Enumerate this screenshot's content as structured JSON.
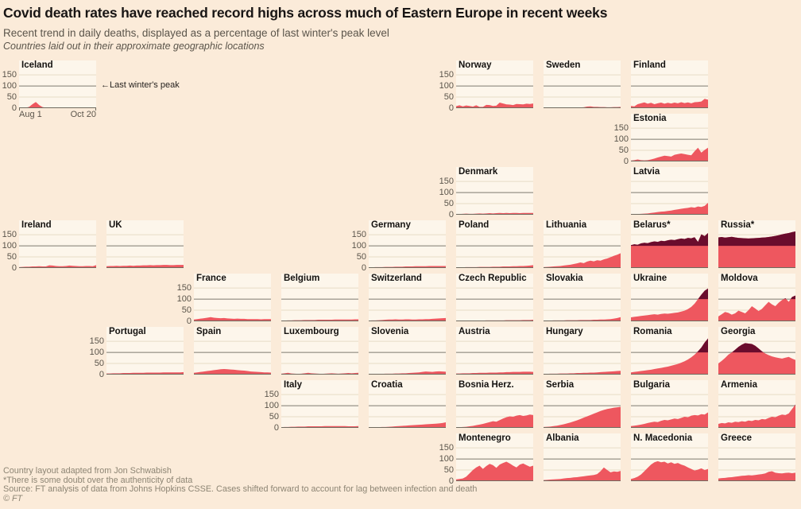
{
  "header": {
    "title": "Covid death rates have reached record highs across much of Eastern Europe in recent weeks",
    "subtitle": "Recent trend in daily deaths, displayed as a percentage of last winter's peak level",
    "note": "Countries laid out in their approximate geographic locations"
  },
  "footer": {
    "line1": "Country layout adapted from Jon Schwabish",
    "line2": "*There is some doubt over the authenticity of data",
    "line3": "Source: FT analysis of data from Johns Hopkins CSSE. Cases shifted forward to account for lag between infection and death",
    "line4": "© FT"
  },
  "colors": {
    "page_bg": "#fbebd9",
    "panel_bg": "#fdf6eb",
    "grid_light": "#e7dcc6",
    "grid_dark": "#7e7a6f",
    "axis": "#6f6a5f",
    "series": "#ee575f",
    "above_peak": "#6a0c2d",
    "text_dark": "#181514",
    "text_gray": "#5b554b",
    "footer_gray": "#8d8574"
  },
  "chart_data": {
    "type": "area",
    "title": "Covid death rates have reached record highs across much of Eastern Europe in recent weeks",
    "ylabel": "% of last winter's peak",
    "ylim": [
      0,
      165
    ],
    "yticks": [
      150,
      100,
      50,
      0
    ],
    "x_start_label": "Aug 1",
    "x_end_label": "Oct 20",
    "reference_line": {
      "value": 100,
      "label": "←Last winter's peak"
    },
    "grid": true,
    "layout": "geographic small multiples, 9 columns x 8 rows",
    "countries": [
      {
        "name": "Iceland",
        "col": 0,
        "row": 0,
        "axis": true,
        "x_axis": true,
        "annotation": true,
        "values": [
          1,
          2,
          2,
          6,
          18,
          28,
          14,
          5,
          2,
          1,
          1,
          1,
          1,
          1,
          1,
          1,
          1,
          1,
          1,
          1,
          1,
          1,
          2,
          2
        ]
      },
      {
        "name": "Norway",
        "col": 5,
        "row": 0,
        "axis": true,
        "values": [
          9,
          13,
          8,
          12,
          10,
          7,
          13,
          6,
          6,
          15,
          14,
          10,
          11,
          25,
          21,
          17,
          16,
          14,
          19,
          18,
          17,
          20,
          19,
          21
        ]
      },
      {
        "name": "Sweden",
        "col": 6,
        "row": 0,
        "values": [
          2,
          2,
          2,
          2,
          2,
          2,
          3,
          3,
          3,
          3,
          3,
          3,
          4,
          7,
          8,
          6,
          6,
          5,
          5,
          4,
          4,
          5,
          5,
          6
        ]
      },
      {
        "name": "Finland",
        "col": 7,
        "row": 0,
        "values": [
          10,
          8,
          18,
          22,
          26,
          20,
          24,
          18,
          22,
          25,
          20,
          24,
          21,
          25,
          22,
          27,
          23,
          26,
          22,
          27,
          28,
          30,
          42,
          38
        ]
      },
      {
        "name": "Estonia",
        "col": 7,
        "row": 1,
        "axis": true,
        "values": [
          4,
          6,
          9,
          6,
          5,
          6,
          9,
          13,
          18,
          22,
          26,
          24,
          22,
          30,
          33,
          36,
          33,
          30,
          28,
          46,
          62,
          40,
          52,
          62
        ]
      },
      {
        "name": "Denmark",
        "col": 5,
        "row": 2,
        "axis": true,
        "values": [
          3,
          3,
          4,
          5,
          4,
          4,
          5,
          6,
          5,
          6,
          7,
          6,
          7,
          8,
          7,
          8,
          7,
          8,
          8,
          7,
          8,
          8,
          8,
          8
        ]
      },
      {
        "name": "Latvia",
        "col": 7,
        "row": 2,
        "values": [
          2,
          3,
          3,
          4,
          5,
          6,
          8,
          10,
          12,
          14,
          15,
          17,
          19,
          22,
          24,
          27,
          29,
          31,
          34,
          32,
          37,
          35,
          40,
          54
        ]
      },
      {
        "name": "Ireland",
        "col": 0,
        "row": 3,
        "axis": true,
        "values": [
          4,
          5,
          6,
          6,
          7,
          7,
          8,
          7,
          7,
          12,
          11,
          9,
          8,
          8,
          9,
          11,
          10,
          9,
          8,
          8,
          9,
          9,
          8,
          13
        ]
      },
      {
        "name": "UK",
        "col": 1,
        "row": 3,
        "values": [
          8,
          9,
          9,
          10,
          9,
          10,
          10,
          11,
          10,
          11,
          11,
          12,
          12,
          13,
          12,
          13,
          13,
          14,
          14,
          13,
          13,
          14,
          14,
          14
        ]
      },
      {
        "name": "Germany",
        "col": 4,
        "row": 3,
        "axis": true,
        "values": [
          3,
          3,
          4,
          4,
          4,
          5,
          5,
          5,
          6,
          6,
          6,
          7,
          7,
          7,
          8,
          8,
          8,
          8,
          9,
          9,
          9,
          9,
          9,
          9
        ]
      },
      {
        "name": "Poland",
        "col": 5,
        "row": 3,
        "values": [
          3,
          3,
          3,
          4,
          4,
          4,
          4,
          5,
          5,
          5,
          5,
          6,
          6,
          6,
          7,
          7,
          7,
          8,
          8,
          9,
          9,
          10,
          11,
          13
        ]
      },
      {
        "name": "Lithuania",
        "col": 6,
        "row": 3,
        "values": [
          4,
          5,
          6,
          7,
          8,
          9,
          11,
          13,
          15,
          18,
          21,
          25,
          22,
          29,
          33,
          30,
          35,
          33,
          39,
          43,
          49,
          55,
          60,
          67
        ]
      },
      {
        "name": "Belarus*",
        "col": 7,
        "row": 3,
        "values": [
          103,
          107,
          105,
          111,
          114,
          112,
          117,
          120,
          118,
          123,
          121,
          125,
          128,
          126,
          130,
          133,
          131,
          136,
          134,
          139,
          118,
          152,
          144,
          158
        ]
      },
      {
        "name": "Russia*",
        "col": 8,
        "row": 3,
        "values": [
          138,
          140,
          137,
          139,
          141,
          138,
          136,
          135,
          134,
          133,
          134,
          135,
          136,
          137,
          138,
          140,
          142,
          145,
          148,
          152,
          155,
          158,
          162,
          165
        ]
      },
      {
        "name": "France",
        "col": 2,
        "row": 4,
        "axis": true,
        "values": [
          8,
          10,
          12,
          14,
          16,
          19,
          16,
          15,
          14,
          15,
          13,
          12,
          11,
          12,
          11,
          11,
          10,
          10,
          10,
          10,
          9,
          10,
          10,
          10
        ]
      },
      {
        "name": "Belgium",
        "col": 3,
        "row": 4,
        "values": [
          3,
          3,
          4,
          4,
          5,
          5,
          5,
          6,
          6,
          6,
          6,
          7,
          7,
          7,
          7,
          7,
          8,
          8,
          8,
          8,
          8,
          8,
          9,
          9
        ]
      },
      {
        "name": "Switzerland",
        "col": 4,
        "row": 4,
        "values": [
          3,
          4,
          4,
          5,
          6,
          7,
          8,
          8,
          9,
          8,
          8,
          9,
          9,
          8,
          8,
          9,
          9,
          10,
          10,
          11,
          12,
          13,
          14,
          15
        ]
      },
      {
        "name": "Czech Republic",
        "col": 5,
        "row": 4,
        "values": [
          2,
          2,
          2,
          3,
          3,
          3,
          3,
          3,
          3,
          4,
          4,
          4,
          4,
          4,
          4,
          5,
          5,
          5,
          5,
          5,
          6,
          6,
          6,
          7
        ]
      },
      {
        "name": "Slovakia",
        "col": 6,
        "row": 4,
        "values": [
          3,
          3,
          3,
          4,
          4,
          4,
          4,
          5,
          5,
          5,
          5,
          6,
          6,
          6,
          6,
          7,
          7,
          8,
          8,
          9,
          10,
          12,
          15,
          19
        ]
      },
      {
        "name": "Ukraine",
        "col": 7,
        "row": 4,
        "values": [
          18,
          20,
          22,
          24,
          26,
          28,
          30,
          32,
          30,
          33,
          35,
          34,
          36,
          38,
          40,
          44,
          48,
          55,
          65,
          80,
          100,
          120,
          138,
          148
        ]
      },
      {
        "name": "Moldova",
        "col": 8,
        "row": 4,
        "values": [
          22,
          32,
          42,
          38,
          30,
          36,
          48,
          42,
          36,
          50,
          68,
          58,
          46,
          56,
          72,
          88,
          76,
          68,
          84,
          96,
          104,
          88,
          110,
          116
        ]
      },
      {
        "name": "Portugal",
        "col": 1,
        "row": 5,
        "axis": true,
        "values": [
          5,
          5,
          6,
          6,
          6,
          7,
          7,
          7,
          8,
          8,
          8,
          8,
          9,
          9,
          9,
          9,
          9,
          10,
          10,
          10,
          10,
          10,
          10,
          11
        ]
      },
      {
        "name": "Spain",
        "col": 2,
        "row": 5,
        "values": [
          8,
          10,
          12,
          14,
          16,
          18,
          20,
          22,
          24,
          25,
          24,
          23,
          22,
          20,
          19,
          18,
          16,
          14,
          13,
          12,
          11,
          10,
          10,
          9
        ]
      },
      {
        "name": "Luxembourg",
        "col": 3,
        "row": 5,
        "values": [
          4,
          6,
          8,
          5,
          4,
          3,
          4,
          6,
          8,
          6,
          5,
          4,
          3,
          4,
          5,
          6,
          5,
          4,
          5,
          6,
          7,
          6,
          7,
          8
        ]
      },
      {
        "name": "Slovenia",
        "col": 4,
        "row": 5,
        "values": [
          2,
          2,
          3,
          3,
          3,
          4,
          4,
          4,
          5,
          5,
          6,
          6,
          7,
          8,
          9,
          10,
          12,
          14,
          13,
          12,
          14,
          15,
          14,
          13
        ]
      },
      {
        "name": "Austria",
        "col": 5,
        "row": 5,
        "values": [
          5,
          5,
          6,
          6,
          6,
          7,
          7,
          8,
          8,
          8,
          9,
          9,
          9,
          10,
          10,
          11,
          11,
          12,
          12,
          12,
          13,
          13,
          13,
          12
        ]
      },
      {
        "name": "Hungary",
        "col": 6,
        "row": 5,
        "values": [
          3,
          3,
          4,
          4,
          4,
          5,
          5,
          5,
          6,
          6,
          7,
          7,
          8,
          8,
          9,
          9,
          10,
          11,
          12,
          13,
          14,
          15,
          16,
          17
        ]
      },
      {
        "name": "Romania",
        "col": 7,
        "row": 5,
        "values": [
          10,
          12,
          14,
          16,
          18,
          20,
          22,
          25,
          28,
          30,
          33,
          36,
          40,
          44,
          48,
          54,
          60,
          68,
          78,
          90,
          105,
          122,
          145,
          163
        ]
      },
      {
        "name": "Georgia",
        "col": 8,
        "row": 5,
        "values": [
          50,
          62,
          75,
          90,
          100,
          112,
          125,
          135,
          142,
          140,
          138,
          130,
          118,
          105,
          95,
          88,
          82,
          78,
          75,
          72,
          76,
          80,
          72,
          66
        ]
      },
      {
        "name": "Italy",
        "col": 3,
        "row": 6,
        "axis": true,
        "values": [
          3,
          4,
          4,
          5,
          5,
          6,
          6,
          6,
          7,
          7,
          7,
          7,
          7,
          8,
          8,
          8,
          8,
          8,
          8,
          8,
          7,
          7,
          7,
          8
        ]
      },
      {
        "name": "Croatia",
        "col": 4,
        "row": 6,
        "values": [
          2,
          2,
          3,
          3,
          4,
          4,
          5,
          6,
          7,
          8,
          9,
          10,
          11,
          12,
          13,
          14,
          15,
          16,
          17,
          18,
          19,
          20,
          22,
          25
        ]
      },
      {
        "name": "Bosnia Herz.",
        "col": 5,
        "row": 6,
        "values": [
          2,
          3,
          4,
          5,
          7,
          9,
          12,
          15,
          18,
          22,
          26,
          30,
          28,
          35,
          42,
          48,
          52,
          50,
          55,
          58,
          54,
          56,
          60,
          58
        ]
      },
      {
        "name": "Serbia",
        "col": 6,
        "row": 6,
        "values": [
          4,
          5,
          6,
          8,
          10,
          13,
          16,
          20,
          24,
          29,
          34,
          40,
          46,
          52,
          58,
          64,
          70,
          76,
          81,
          85,
          88,
          91,
          93,
          95
        ]
      },
      {
        "name": "Bulgaria",
        "col": 7,
        "row": 6,
        "values": [
          8,
          10,
          12,
          15,
          18,
          22,
          25,
          28,
          26,
          32,
          36,
          34,
          38,
          42,
          40,
          45,
          50,
          48,
          55,
          58,
          56,
          62,
          60,
          70
        ]
      },
      {
        "name": "Armenia",
        "col": 8,
        "row": 6,
        "values": [
          18,
          22,
          20,
          25,
          23,
          28,
          26,
          30,
          28,
          33,
          31,
          36,
          34,
          40,
          38,
          45,
          50,
          48,
          55,
          60,
          58,
          65,
          85,
          105
        ]
      },
      {
        "name": "Montenegro",
        "col": 5,
        "row": 7,
        "axis": true,
        "values": [
          8,
          10,
          12,
          20,
          35,
          50,
          62,
          70,
          55,
          68,
          78,
          72,
          60,
          75,
          82,
          88,
          80,
          70,
          62,
          75,
          80,
          72,
          65,
          70
        ]
      },
      {
        "name": "Albania",
        "col": 6,
        "row": 7,
        "values": [
          5,
          6,
          7,
          8,
          9,
          10,
          12,
          14,
          15,
          17,
          18,
          20,
          22,
          24,
          26,
          28,
          32,
          45,
          62,
          50,
          40,
          44,
          42,
          46
        ]
      },
      {
        "name": "N. Macedonia",
        "col": 7,
        "row": 7,
        "values": [
          10,
          14,
          20,
          30,
          45,
          60,
          75,
          85,
          90,
          85,
          88,
          80,
          85,
          78,
          82,
          75,
          70,
          62,
          55,
          48,
          52,
          58,
          50,
          55
        ]
      },
      {
        "name": "Greece",
        "col": 8,
        "row": 7,
        "values": [
          12,
          14,
          15,
          17,
          18,
          20,
          22,
          24,
          25,
          27,
          26,
          28,
          30,
          32,
          35,
          42,
          45,
          38,
          36,
          35,
          37,
          38,
          36,
          38
        ]
      }
    ]
  }
}
